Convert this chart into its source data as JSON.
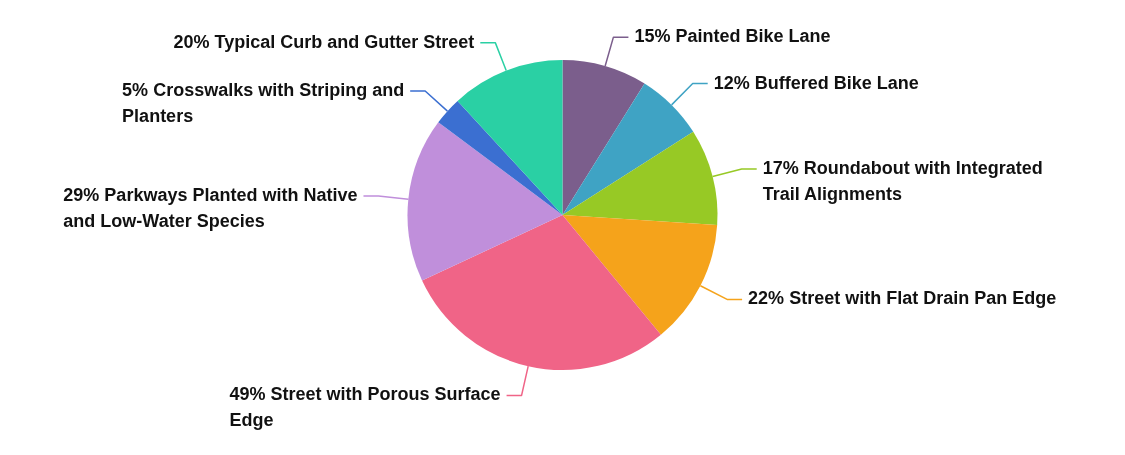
{
  "chart_data": {
    "type": "pie",
    "categories": [
      "Painted Bike Lane",
      "Buffered Bike Lane",
      "Roundabout with Integrated Trail Alignments",
      "Street with Flat Drain Pan Edge",
      "Street with Porous Surface Edge",
      "Parkways Planted with Native and Low-Water Species",
      "Crosswalks with Striping and Planters",
      "Typical Curb and Gutter Street"
    ],
    "values": [
      15,
      12,
      17,
      22,
      49,
      29,
      5,
      20
    ],
    "value_labels": [
      "15%",
      "12%",
      "17%",
      "22%",
      "49%",
      "29%",
      "5%",
      "20%"
    ],
    "colors": [
      "#7b5e8c",
      "#3fa3c4",
      "#97c925",
      "#f5a31b",
      "#f06487",
      "#c08fdb",
      "#3b6fd1",
      "#2ad0a4"
    ],
    "legend": false
  }
}
